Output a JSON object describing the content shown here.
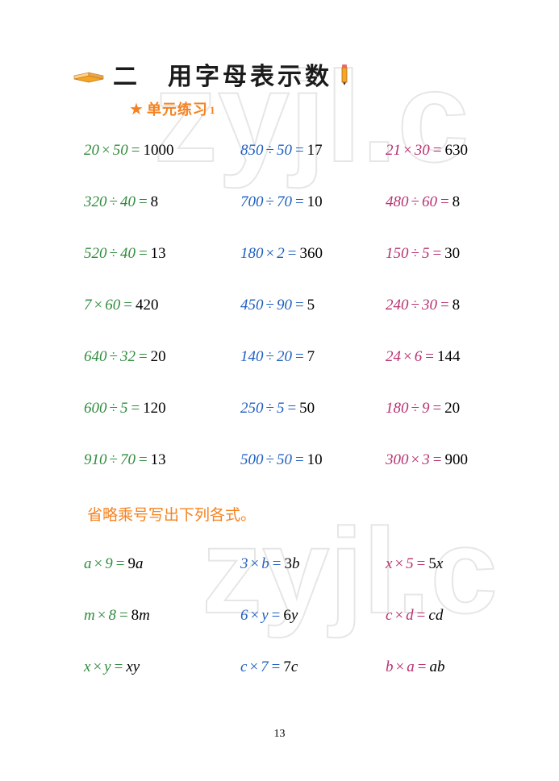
{
  "title": "二　用字母表示数",
  "subtitle": "单元练习",
  "subtitle_num": "1",
  "page_number": "13",
  "section2_label": "省略乘号写出下列各式。",
  "colors": {
    "col1_expr": "#2f8c3c",
    "col2_expr": "#2060c0",
    "col3_expr": "#b83070",
    "answer": "#000000",
    "subtitle": "#f58220"
  },
  "rows1": [
    [
      {
        "a": "20",
        "op": "×",
        "b": "50",
        "ans": "1000"
      },
      {
        "a": "850",
        "op": "÷",
        "b": "50",
        "ans": "17"
      },
      {
        "a": "21",
        "op": "×",
        "b": "30",
        "ans": "630"
      }
    ],
    [
      {
        "a": "320",
        "op": "÷",
        "b": "40",
        "ans": "8"
      },
      {
        "a": "700",
        "op": "÷",
        "b": "70",
        "ans": "10"
      },
      {
        "a": "480",
        "op": "÷",
        "b": "60",
        "ans": "8"
      }
    ],
    [
      {
        "a": "520",
        "op": "÷",
        "b": "40",
        "ans": "13"
      },
      {
        "a": "180",
        "op": "×",
        "b": "2",
        "ans": "360"
      },
      {
        "a": "150",
        "op": "÷",
        "b": "5",
        "ans": "30"
      }
    ],
    [
      {
        "a": "7",
        "op": "×",
        "b": "60",
        "ans": "420"
      },
      {
        "a": "450",
        "op": "÷",
        "b": "90",
        "ans": "5"
      },
      {
        "a": "240",
        "op": "÷",
        "b": "30",
        "ans": "8"
      }
    ],
    [
      {
        "a": "640",
        "op": "÷",
        "b": "32",
        "ans": "20"
      },
      {
        "a": "140",
        "op": "÷",
        "b": "20",
        "ans": "7"
      },
      {
        "a": "24",
        "op": "×",
        "b": "6",
        "ans": "144"
      }
    ],
    [
      {
        "a": "600",
        "op": "÷",
        "b": "5",
        "ans": "120"
      },
      {
        "a": "250",
        "op": "÷",
        "b": "5",
        "ans": "50"
      },
      {
        "a": "180",
        "op": "÷",
        "b": "9",
        "ans": "20"
      }
    ],
    [
      {
        "a": "910",
        "op": "÷",
        "b": "70",
        "ans": "13"
      },
      {
        "a": "500",
        "op": "÷",
        "b": "50",
        "ans": "10"
      },
      {
        "a": "300",
        "op": "×",
        "b": "3",
        "ans": "900"
      }
    ]
  ],
  "rows2": [
    [
      {
        "a": "a",
        "b": "9",
        "ans": "9a"
      },
      {
        "a": "3",
        "b": "b",
        "ans": "3b"
      },
      {
        "a": "x",
        "b": "5",
        "ans": "5x"
      }
    ],
    [
      {
        "a": "m",
        "b": "8",
        "ans": "8m"
      },
      {
        "a": "6",
        "b": "y",
        "ans": "6y"
      },
      {
        "a": "c",
        "b": "d",
        "ans": "cd"
      }
    ],
    [
      {
        "a": "x",
        "b": "y",
        "ans": "xy"
      },
      {
        "a": "c",
        "b": "7",
        "ans": "7c"
      },
      {
        "a": "b",
        "b": "a",
        "ans": "ab"
      }
    ]
  ]
}
